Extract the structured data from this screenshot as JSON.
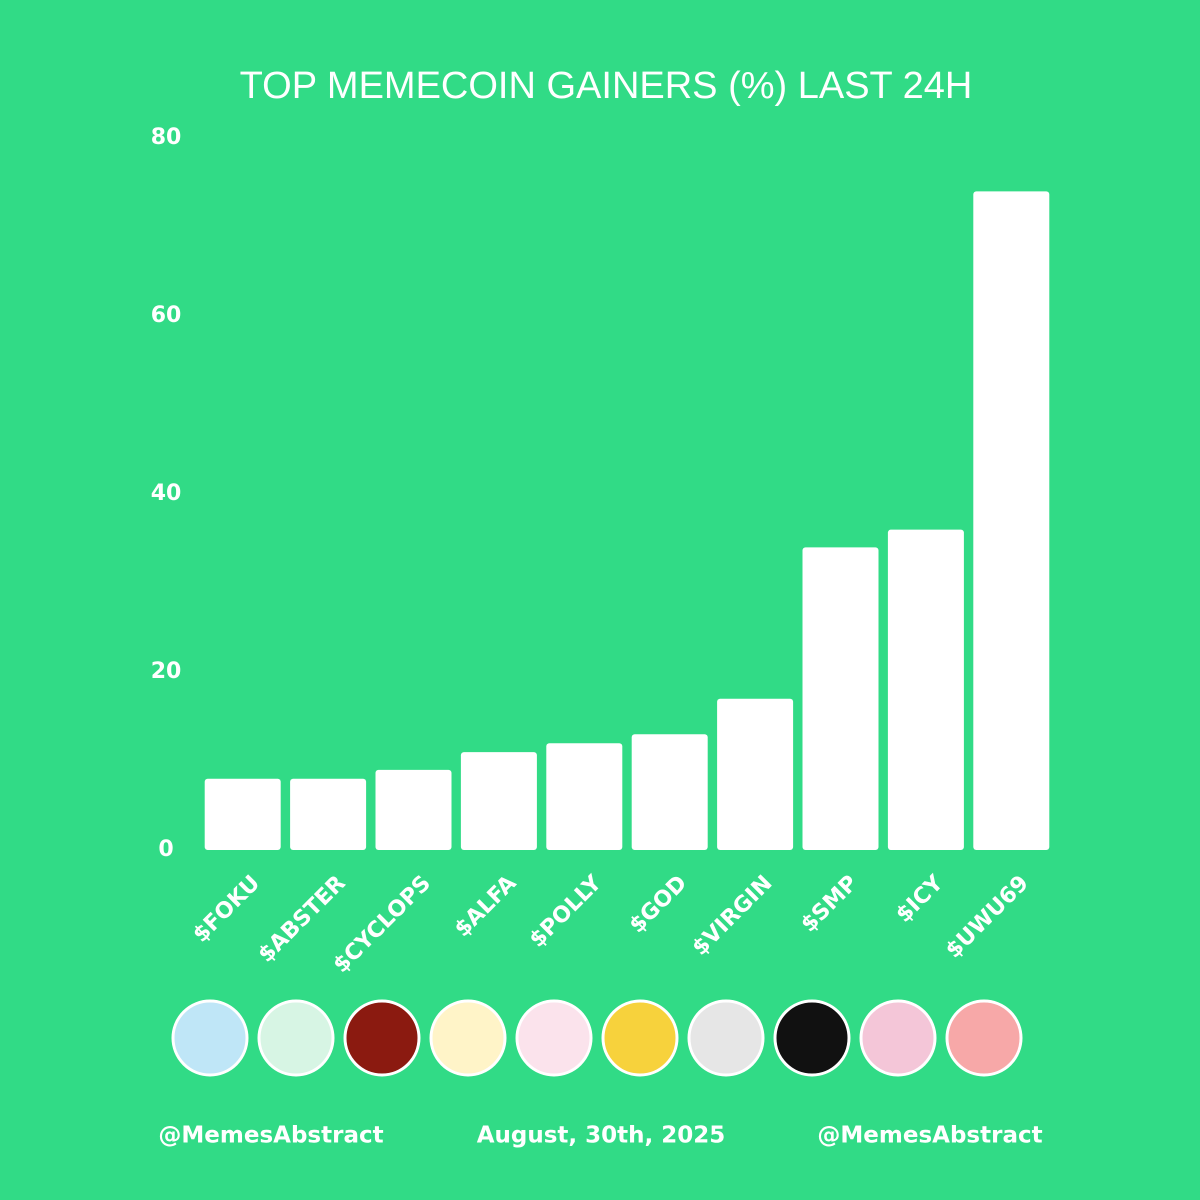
{
  "chart_data": {
    "type": "bar",
    "title": "TOP MEMECOIN GAINERS (%) LAST 24H",
    "categories": [
      "$FOKU",
      "$ABSTER",
      "$CYCLOPS",
      "$ALFA",
      "$POLLY",
      "$GOD",
      "$VIRGIN",
      "$SMP",
      "$ICY",
      "$UWU69"
    ],
    "values": [
      8,
      8,
      9,
      11,
      12,
      13,
      17,
      34,
      36,
      74
    ],
    "color": "#ffffff",
    "ylim": [
      0,
      80
    ],
    "yticks": [
      0,
      20,
      40,
      60,
      80
    ],
    "grid": false,
    "footer": [
      "@MemesAbstract",
      "August, 30th, 2025",
      "@MemesAbstract"
    ]
  }
}
